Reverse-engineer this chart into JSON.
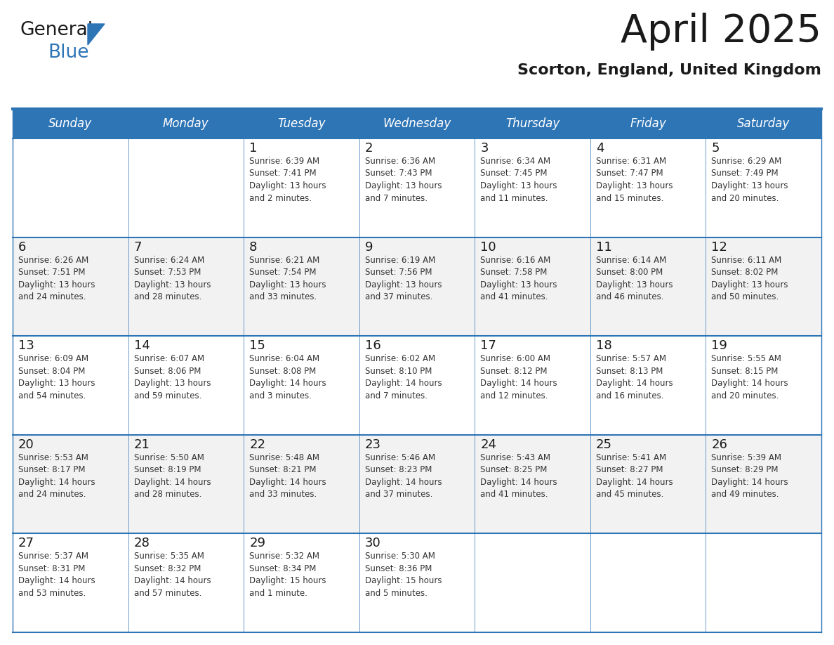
{
  "title": "April 2025",
  "subtitle": "Scorton, England, United Kingdom",
  "header_bg_color": "#2E75B6",
  "header_text_color": "#FFFFFF",
  "day_names": [
    "Sunday",
    "Monday",
    "Tuesday",
    "Wednesday",
    "Thursday",
    "Friday",
    "Saturday"
  ],
  "bg_color": "#FFFFFF",
  "cell_bg_even": "#FFFFFF",
  "cell_bg_odd": "#F2F2F2",
  "grid_line_color": "#2E75B6",
  "date_text_color": "#1A1A1A",
  "info_text_color": "#333333",
  "weeks": [
    [
      {
        "date": "",
        "info": ""
      },
      {
        "date": "",
        "info": ""
      },
      {
        "date": "1",
        "info": "Sunrise: 6:39 AM\nSunset: 7:41 PM\nDaylight: 13 hours\nand 2 minutes."
      },
      {
        "date": "2",
        "info": "Sunrise: 6:36 AM\nSunset: 7:43 PM\nDaylight: 13 hours\nand 7 minutes."
      },
      {
        "date": "3",
        "info": "Sunrise: 6:34 AM\nSunset: 7:45 PM\nDaylight: 13 hours\nand 11 minutes."
      },
      {
        "date": "4",
        "info": "Sunrise: 6:31 AM\nSunset: 7:47 PM\nDaylight: 13 hours\nand 15 minutes."
      },
      {
        "date": "5",
        "info": "Sunrise: 6:29 AM\nSunset: 7:49 PM\nDaylight: 13 hours\nand 20 minutes."
      }
    ],
    [
      {
        "date": "6",
        "info": "Sunrise: 6:26 AM\nSunset: 7:51 PM\nDaylight: 13 hours\nand 24 minutes."
      },
      {
        "date": "7",
        "info": "Sunrise: 6:24 AM\nSunset: 7:53 PM\nDaylight: 13 hours\nand 28 minutes."
      },
      {
        "date": "8",
        "info": "Sunrise: 6:21 AM\nSunset: 7:54 PM\nDaylight: 13 hours\nand 33 minutes."
      },
      {
        "date": "9",
        "info": "Sunrise: 6:19 AM\nSunset: 7:56 PM\nDaylight: 13 hours\nand 37 minutes."
      },
      {
        "date": "10",
        "info": "Sunrise: 6:16 AM\nSunset: 7:58 PM\nDaylight: 13 hours\nand 41 minutes."
      },
      {
        "date": "11",
        "info": "Sunrise: 6:14 AM\nSunset: 8:00 PM\nDaylight: 13 hours\nand 46 minutes."
      },
      {
        "date": "12",
        "info": "Sunrise: 6:11 AM\nSunset: 8:02 PM\nDaylight: 13 hours\nand 50 minutes."
      }
    ],
    [
      {
        "date": "13",
        "info": "Sunrise: 6:09 AM\nSunset: 8:04 PM\nDaylight: 13 hours\nand 54 minutes."
      },
      {
        "date": "14",
        "info": "Sunrise: 6:07 AM\nSunset: 8:06 PM\nDaylight: 13 hours\nand 59 minutes."
      },
      {
        "date": "15",
        "info": "Sunrise: 6:04 AM\nSunset: 8:08 PM\nDaylight: 14 hours\nand 3 minutes."
      },
      {
        "date": "16",
        "info": "Sunrise: 6:02 AM\nSunset: 8:10 PM\nDaylight: 14 hours\nand 7 minutes."
      },
      {
        "date": "17",
        "info": "Sunrise: 6:00 AM\nSunset: 8:12 PM\nDaylight: 14 hours\nand 12 minutes."
      },
      {
        "date": "18",
        "info": "Sunrise: 5:57 AM\nSunset: 8:13 PM\nDaylight: 14 hours\nand 16 minutes."
      },
      {
        "date": "19",
        "info": "Sunrise: 5:55 AM\nSunset: 8:15 PM\nDaylight: 14 hours\nand 20 minutes."
      }
    ],
    [
      {
        "date": "20",
        "info": "Sunrise: 5:53 AM\nSunset: 8:17 PM\nDaylight: 14 hours\nand 24 minutes."
      },
      {
        "date": "21",
        "info": "Sunrise: 5:50 AM\nSunset: 8:19 PM\nDaylight: 14 hours\nand 28 minutes."
      },
      {
        "date": "22",
        "info": "Sunrise: 5:48 AM\nSunset: 8:21 PM\nDaylight: 14 hours\nand 33 minutes."
      },
      {
        "date": "23",
        "info": "Sunrise: 5:46 AM\nSunset: 8:23 PM\nDaylight: 14 hours\nand 37 minutes."
      },
      {
        "date": "24",
        "info": "Sunrise: 5:43 AM\nSunset: 8:25 PM\nDaylight: 14 hours\nand 41 minutes."
      },
      {
        "date": "25",
        "info": "Sunrise: 5:41 AM\nSunset: 8:27 PM\nDaylight: 14 hours\nand 45 minutes."
      },
      {
        "date": "26",
        "info": "Sunrise: 5:39 AM\nSunset: 8:29 PM\nDaylight: 14 hours\nand 49 minutes."
      }
    ],
    [
      {
        "date": "27",
        "info": "Sunrise: 5:37 AM\nSunset: 8:31 PM\nDaylight: 14 hours\nand 53 minutes."
      },
      {
        "date": "28",
        "info": "Sunrise: 5:35 AM\nSunset: 8:32 PM\nDaylight: 14 hours\nand 57 minutes."
      },
      {
        "date": "29",
        "info": "Sunrise: 5:32 AM\nSunset: 8:34 PM\nDaylight: 15 hours\nand 1 minute."
      },
      {
        "date": "30",
        "info": "Sunrise: 5:30 AM\nSunset: 8:36 PM\nDaylight: 15 hours\nand 5 minutes."
      },
      {
        "date": "",
        "info": ""
      },
      {
        "date": "",
        "info": ""
      },
      {
        "date": "",
        "info": ""
      }
    ]
  ],
  "logo_text1": "General",
  "logo_text2": "Blue",
  "logo_text1_color": "#1A1A1A",
  "logo_text2_color": "#2E75B6",
  "logo_triangle_color": "#2E75B6",
  "title_fontsize": 40,
  "subtitle_fontsize": 16,
  "day_header_fontsize": 12,
  "date_fontsize": 13,
  "info_fontsize": 8.5
}
